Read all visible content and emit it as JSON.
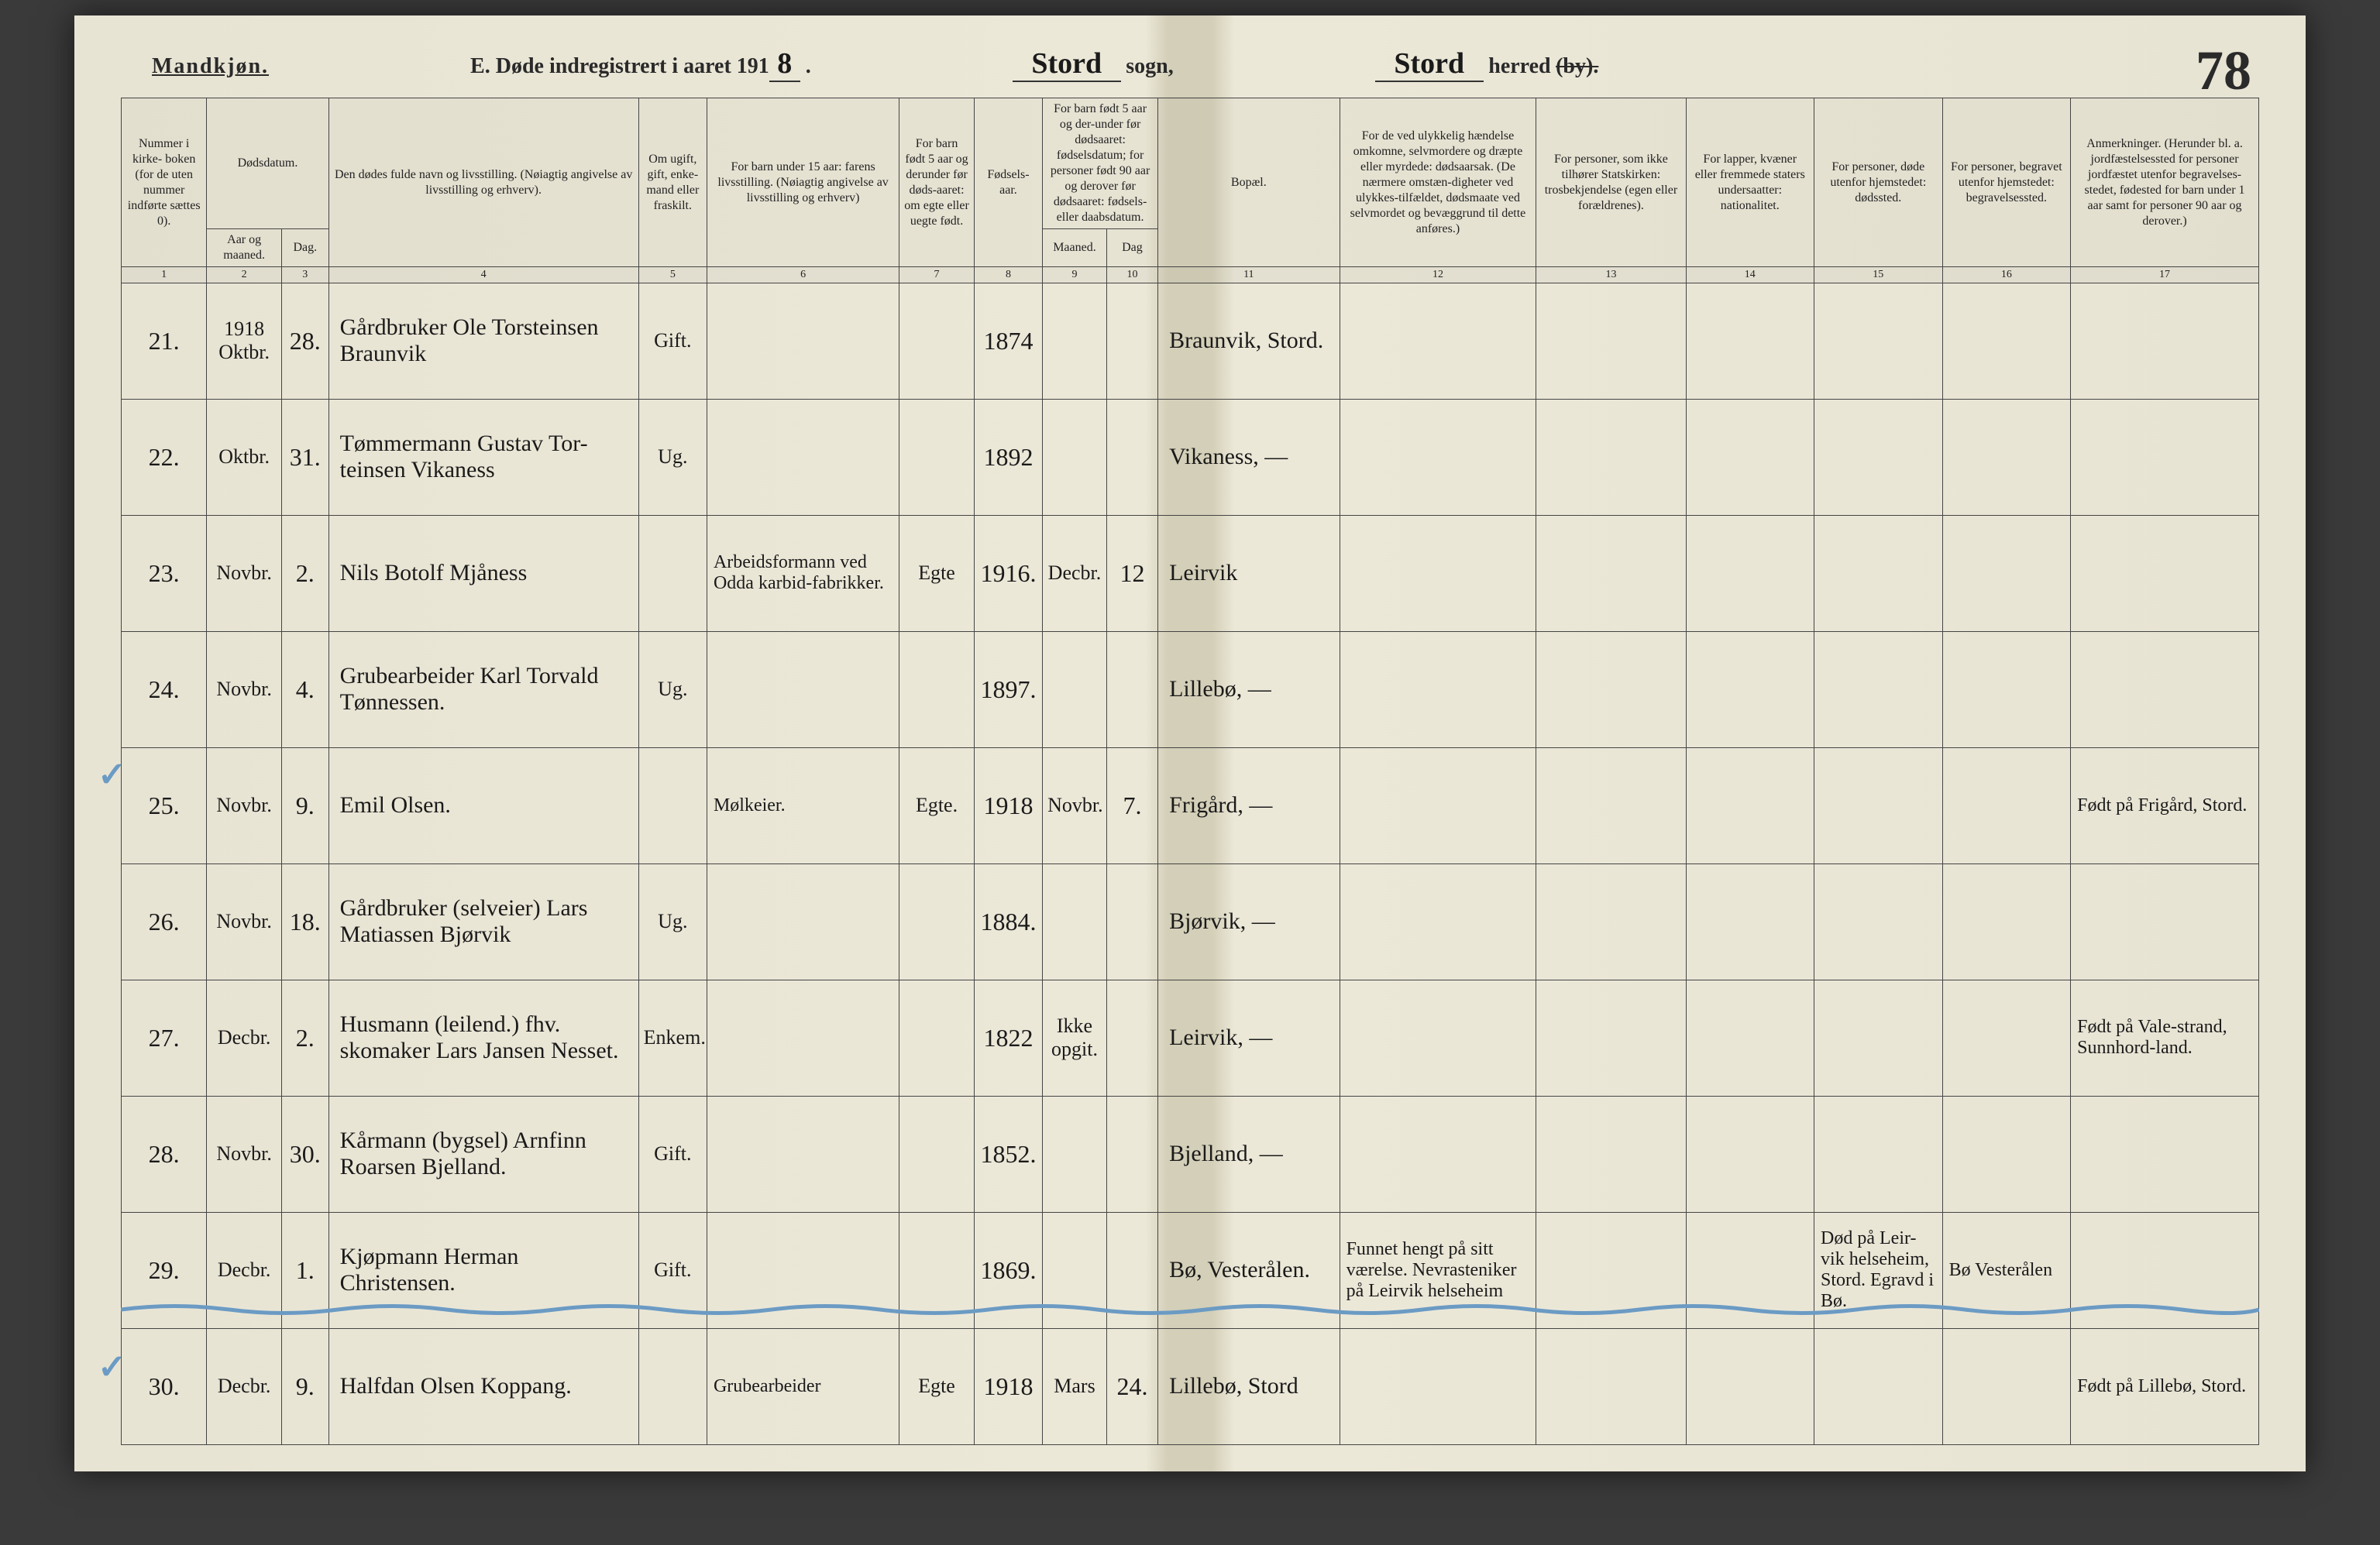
{
  "header": {
    "gender": "Mandkjøn.",
    "form_title_prefix": "E.  Døde indregistrert i aaret 191",
    "year_digit": "8",
    "sogn_value": "Stord",
    "sogn_label": "sogn,",
    "herred_value": "Stord",
    "herred_label": "herred",
    "herred_strike": "(by).",
    "page_number": "78"
  },
  "columns": {
    "h1": "Nummer i kirke-\nboken (for de uten nummer indførte sættes 0).",
    "h2": "Dødsdatum.",
    "h2a": "Aar og maaned.",
    "h2b": "Dag.",
    "h4": "Den dødes fulde navn og livsstilling.\n(Nøiagtig angivelse av livsstilling og erhverv).",
    "h5": "Om ugift, gift, enke-mand eller fraskilt.",
    "h6": "For barn under 15 aar:\nfarens livsstilling.\n(Nøiagtig angivelse av livsstilling og erhverv)",
    "h7": "For barn født 5 aar og derunder før døds-aaret: om egte eller uegte født.",
    "h8": "Fødsels-aar.",
    "h9_10": "For barn født 5 aar og der-under før dødsaaret: fødselsdatum; for personer født 90 aar og derover før dødsaaret: fødsels- eller daabsdatum.",
    "h9": "Maaned.",
    "h10": "Dag",
    "h11": "Bopæl.",
    "h12": "For de ved ulykkelig hændelse omkomne, selvmordere og dræpte eller myrdede: dødsaarsak. (De nærmere omstæn-digheter ved ulykkes-tilfældet, dødsmaate ved selvmordet og bevæggrund til dette anføres.)",
    "h13": "For personer, som ikke tilhører Statskirken: trosbekjendelse (egen eller forældrenes).",
    "h14": "For lapper, kvæner eller fremmede staters undersaatter: nationalitet.",
    "h15": "For personer, døde utenfor hjemstedet: dødssted.",
    "h16": "For personer, begravet utenfor hjemstedet: begravelsessted.",
    "h17": "Anmerkninger. (Herunder bl. a. jordfæstelsessted for personer jordfæstet utenfor begravelses-stedet, fødested for barn under 1 aar samt for personer 90 aar og derover.)"
  },
  "col_nums": [
    "1",
    "2",
    "3",
    "4",
    "5",
    "6",
    "7",
    "8",
    "9",
    "10",
    "11",
    "12",
    "13",
    "14",
    "15",
    "16",
    "17"
  ],
  "rows": [
    {
      "n": "21.",
      "mon": "1918 Oktbr.",
      "day": "28.",
      "name": "Gårdbruker Ole Torsteinsen Braunvik",
      "stat": "Gift.",
      "f6": "",
      "f7": "",
      "yr": "1874",
      "f9": "",
      "f10": "",
      "bopel": "Braunvik, Stord.",
      "f12": "",
      "f13": "",
      "f14": "",
      "f15": "",
      "f16": "",
      "f17": ""
    },
    {
      "n": "22.",
      "mon": "Oktbr.",
      "day": "31.",
      "name": "Tømmermann Gustav Tor-teinsen Vikaness",
      "stat": "Ug.",
      "f6": "",
      "f7": "",
      "yr": "1892",
      "f9": "",
      "f10": "",
      "bopel": "Vikaness, —",
      "f12": "",
      "f13": "",
      "f14": "",
      "f15": "",
      "f16": "",
      "f17": ""
    },
    {
      "n": "23.",
      "mon": "Novbr.",
      "day": "2.",
      "name": "Nils Botolf Mjåness",
      "stat": "",
      "f6": "Arbeidsformann ved Odda karbid-fabrikker.",
      "f7": "Egte",
      "yr": "1916.",
      "f9": "Decbr.",
      "f10": "12",
      "bopel": "Leirvik",
      "f12": "",
      "f13": "",
      "f14": "",
      "f15": "",
      "f16": "",
      "f17": ""
    },
    {
      "n": "24.",
      "mon": "Novbr.",
      "day": "4.",
      "name": "Grubearbeider Karl Torvald Tønnessen.",
      "stat": "Ug.",
      "f6": "",
      "f7": "",
      "yr": "1897.",
      "f9": "",
      "f10": "",
      "bopel": "Lillebø, —",
      "f12": "",
      "f13": "",
      "f14": "",
      "f15": "",
      "f16": "",
      "f17": ""
    },
    {
      "n": "25.",
      "mon": "Novbr.",
      "day": "9.",
      "name": "Emil Olsen.",
      "stat": "",
      "f6": "Mølkeier.",
      "f7": "Egte.",
      "yr": "1918",
      "f9": "Novbr.",
      "f10": "7.",
      "bopel": "Frigård, —",
      "f12": "",
      "f13": "",
      "f14": "",
      "f15": "",
      "f16": "",
      "f17": "Født på Frigård, Stord."
    },
    {
      "n": "26.",
      "mon": "Novbr.",
      "day": "18.",
      "name": "Gårdbruker (selveier) Lars Matiassen Bjørvik",
      "stat": "Ug.",
      "f6": "",
      "f7": "",
      "yr": "1884.",
      "f9": "",
      "f10": "",
      "bopel": "Bjørvik, —",
      "f12": "",
      "f13": "",
      "f14": "",
      "f15": "",
      "f16": "",
      "f17": ""
    },
    {
      "n": "27.",
      "mon": "Decbr.",
      "day": "2.",
      "name": "Husmann (leilend.) fhv. skomaker Lars Jansen Nesset.",
      "stat": "Enkem.",
      "f6": "",
      "f7": "",
      "yr": "1822",
      "f9": "Ikke opgit.",
      "f10": "",
      "bopel": "Leirvik, —",
      "f12": "",
      "f13": "",
      "f14": "",
      "f15": "",
      "f16": "",
      "f17": "Født på Vale-strand, Sunnhord-land."
    },
    {
      "n": "28.",
      "mon": "Novbr.",
      "day": "30.",
      "name": "Kårmann (bygsel) Arnfinn Roarsen Bjelland.",
      "stat": "Gift.",
      "f6": "",
      "f7": "",
      "yr": "1852.",
      "f9": "",
      "f10": "",
      "bopel": "Bjelland, —",
      "f12": "",
      "f13": "",
      "f14": "",
      "f15": "",
      "f16": "",
      "f17": ""
    },
    {
      "n": "29.",
      "mon": "Decbr.",
      "day": "1.",
      "name": "Kjøpmann Herman Christensen.",
      "stat": "Gift.",
      "f6": "",
      "f7": "",
      "yr": "1869.",
      "f9": "",
      "f10": "",
      "bopel": "Bø, Vesterålen.",
      "f12": "Funnet hengt på sitt værelse. Nevrasteniker på Leirvik helseheim",
      "f13": "",
      "f14": "",
      "f15": "Død på Leir-vik helseheim, Stord. Egravd i Bø.",
      "f16": "Bø Vesterålen",
      "f17": ""
    },
    {
      "n": "30.",
      "mon": "Decbr.",
      "day": "9.",
      "name": "Halfdan Olsen Koppang.",
      "stat": "",
      "f6": "Grubearbeider",
      "f7": "Egte",
      "yr": "1918",
      "f9": "Mars",
      "f10": "24.",
      "bopel": "Lillebø, Stord",
      "f12": "",
      "f13": "",
      "f14": "",
      "f15": "",
      "f16": "",
      "f17": "Født på Lillebø, Stord."
    }
  ]
}
